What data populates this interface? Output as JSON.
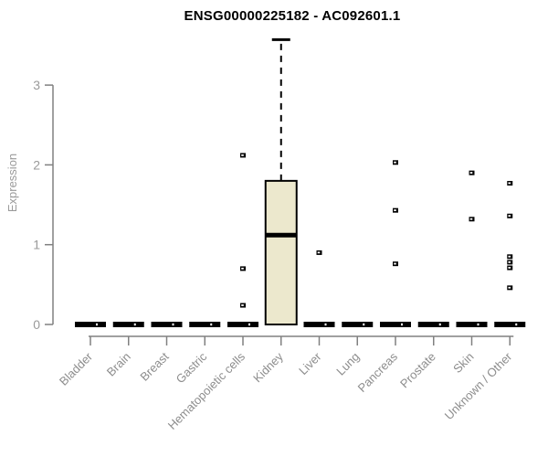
{
  "page": {
    "background": "#ffffff"
  },
  "chart_data": {
    "type": "boxplot",
    "title": "ENSG00000225182 - AC092601.1",
    "ylabel": "Expression",
    "xlabel": "",
    "yticks": [
      0,
      1,
      2,
      3
    ],
    "ylim": [
      0,
      3.75
    ],
    "grid": false,
    "legend": "none",
    "colors": {
      "box_fill": "#ece8cd",
      "box_border": "#000000",
      "median": "#000000",
      "axis": "#808080",
      "tick_label": "#9a9a9a",
      "category_label": "#8d8d8d",
      "title": "#000000",
      "outlier": "#000000"
    },
    "categories": [
      "Bladder",
      "Brain",
      "Breast",
      "Gastric",
      "Hematopoietic cells",
      "Kidney",
      "Liver",
      "Lung",
      "Pancreas",
      "Prostate",
      "Skin",
      "Unknown / Other"
    ],
    "series": [
      {
        "category": "Bladder",
        "q1": 0,
        "median": 0,
        "q3": 0,
        "whisker_low": 0,
        "whisker_high": 0,
        "outliers": []
      },
      {
        "category": "Brain",
        "q1": 0,
        "median": 0,
        "q3": 0,
        "whisker_low": 0,
        "whisker_high": 0,
        "outliers": []
      },
      {
        "category": "Breast",
        "q1": 0,
        "median": 0,
        "q3": 0,
        "whisker_low": 0,
        "whisker_high": 0,
        "outliers": []
      },
      {
        "category": "Gastric",
        "q1": 0,
        "median": 0,
        "q3": 0,
        "whisker_low": 0,
        "whisker_high": 0,
        "outliers": []
      },
      {
        "category": "Hematopoietic cells",
        "q1": 0,
        "median": 0,
        "q3": 0,
        "whisker_low": 0,
        "whisker_high": 0,
        "outliers": [
          2.12,
          0.7,
          0.24
        ]
      },
      {
        "category": "Kidney",
        "q1": 0,
        "median": 1.12,
        "q3": 1.8,
        "whisker_low": 0,
        "whisker_high": 3.57,
        "outliers": []
      },
      {
        "category": "Liver",
        "q1": 0,
        "median": 0,
        "q3": 0,
        "whisker_low": 0,
        "whisker_high": 0,
        "outliers": [
          0.9
        ]
      },
      {
        "category": "Lung",
        "q1": 0,
        "median": 0,
        "q3": 0,
        "whisker_low": 0,
        "whisker_high": 0,
        "outliers": []
      },
      {
        "category": "Pancreas",
        "q1": 0,
        "median": 0,
        "q3": 0,
        "whisker_low": 0,
        "whisker_high": 0,
        "outliers": [
          2.03,
          1.43,
          0.76
        ]
      },
      {
        "category": "Prostate",
        "q1": 0,
        "median": 0,
        "q3": 0,
        "whisker_low": 0,
        "whisker_high": 0,
        "outliers": []
      },
      {
        "category": "Skin",
        "q1": 0,
        "median": 0,
        "q3": 0,
        "whisker_low": 0,
        "whisker_high": 0,
        "outliers": [
          1.9,
          1.32
        ]
      },
      {
        "category": "Unknown / Other",
        "q1": 0,
        "median": 0,
        "q3": 0,
        "whisker_low": 0,
        "whisker_high": 0,
        "outliers": [
          1.77,
          1.36,
          0.85,
          0.78,
          0.71,
          0.46
        ]
      }
    ]
  }
}
